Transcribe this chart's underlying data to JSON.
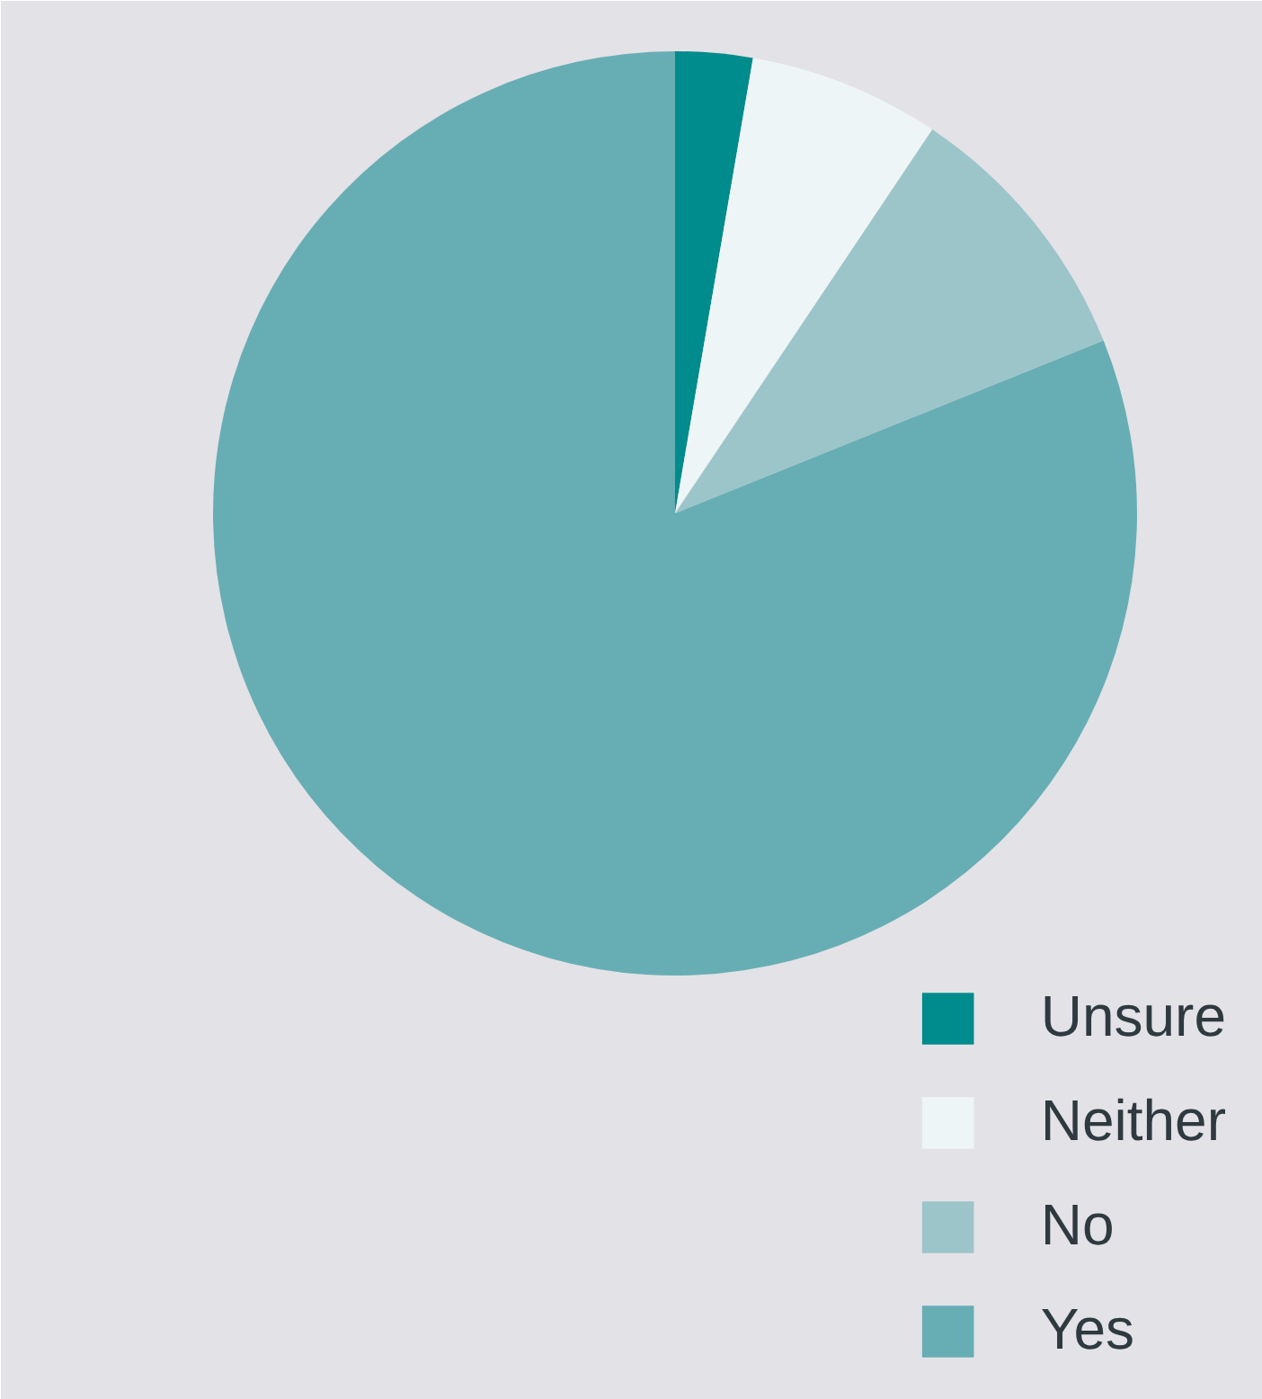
{
  "chart_data": {
    "type": "pie",
    "categories": [
      "Unsure",
      "Neither",
      "No",
      "Yes"
    ],
    "values": [
      2.7,
      6.7,
      9.5,
      81.1
    ],
    "colors": [
      "#008b8c",
      "#eef5f6",
      "#9cc5ca",
      "#67aeb4"
    ],
    "legend": "bottom right"
  }
}
